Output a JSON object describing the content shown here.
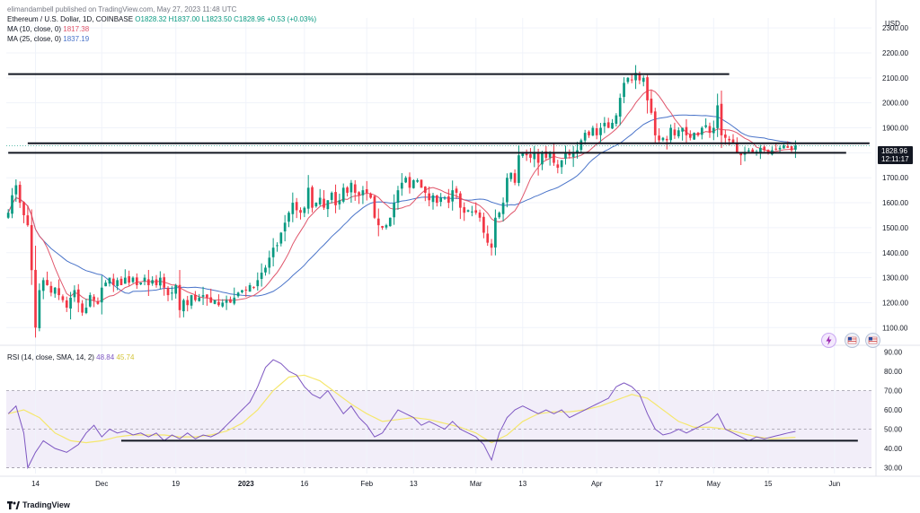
{
  "header": {
    "publisher": "elimandambell published on TradingView.com, May 27, 2023 11:48 UTC",
    "symbol": "Ethereum / U.S. Dollar, 1D, COINBASE",
    "ohlc": "O1828.32 H1837.00 L1823.50 C1828.96 +0.53 (+0.03%)",
    "ma10_label": "MA (10, close, 0)",
    "ma10_value": "1817.38",
    "ma25_label": "MA (25, close, 0)",
    "ma25_value": "1837.19",
    "rsi_label": "RSI (14, close, SMA, 14, 2)",
    "rsi_value": "48.84",
    "rsi_sma_value": "45.74"
  },
  "axis": {
    "currency": "USD",
    "last_price": "1828.96",
    "countdown": "12:11:17"
  },
  "brand": "TradingView",
  "colors": {
    "up": "#089981",
    "down": "#f23645",
    "ma10": "#e0566b",
    "ma25": "#4a74c9",
    "rsi": "#7e57c2",
    "rsi_sma": "#f5e76d",
    "rsi_band": "#ede7f6"
  },
  "chart_data": {
    "type": "candlestick",
    "price_ticks": [
      1100,
      1200,
      1300,
      1400,
      1500,
      1600,
      1700,
      1800,
      1900,
      2000,
      2100,
      2200,
      2300
    ],
    "price_ylim": [
      1040,
      2340
    ],
    "rsi_ticks": [
      30,
      40,
      50,
      60,
      70,
      80,
      90
    ],
    "rsi_ylim": [
      27,
      93
    ],
    "rsi_bands": [
      30,
      50,
      70
    ],
    "x_labels": [
      {
        "label": "14",
        "index": 7
      },
      {
        "label": "Dec",
        "index": 24
      },
      {
        "label": "19",
        "index": 43
      },
      {
        "label": "2023",
        "index": 61
      },
      {
        "label": "16",
        "index": 76
      },
      {
        "label": "Feb",
        "index": 92
      },
      {
        "label": "13",
        "index": 104
      },
      {
        "label": "Mar",
        "index": 120
      },
      {
        "label": "13",
        "index": 132
      },
      {
        "label": "Apr",
        "index": 151
      },
      {
        "label": "17",
        "index": 167
      },
      {
        "label": "May",
        "index": 181
      },
      {
        "label": "15",
        "index": 195
      },
      {
        "label": "Jun",
        "index": 212
      }
    ],
    "levels": [
      {
        "price": 2115,
        "from": 0,
        "to": 185
      },
      {
        "price": 1838,
        "from": 5,
        "to": 221
      },
      {
        "price": 1800,
        "from": 0,
        "to": 215
      }
    ],
    "rsi_level": {
      "value": 44,
      "from": 29,
      "to": 218
    },
    "close_anchors": [
      [
        0,
        1560
      ],
      [
        1,
        1630
      ],
      [
        2,
        1670
      ],
      [
        3,
        1600
      ],
      [
        4,
        1550
      ],
      [
        5,
        1510
      ],
      [
        6,
        1330
      ],
      [
        7,
        1100
      ],
      [
        8,
        1250
      ],
      [
        9,
        1290
      ],
      [
        10,
        1270
      ],
      [
        11,
        1240
      ],
      [
        12,
        1260
      ],
      [
        13,
        1230
      ],
      [
        14,
        1210
      ],
      [
        15,
        1180
      ],
      [
        16,
        1220
      ],
      [
        17,
        1250
      ],
      [
        18,
        1200
      ],
      [
        19,
        1160
      ],
      [
        20,
        1180
      ],
      [
        21,
        1230
      ],
      [
        22,
        1210
      ],
      [
        23,
        1195
      ],
      [
        24,
        1260
      ],
      [
        25,
        1280
      ],
      [
        26,
        1300
      ],
      [
        27,
        1270
      ],
      [
        28,
        1290
      ],
      [
        29,
        1270
      ],
      [
        30,
        1300
      ],
      [
        31,
        1280
      ],
      [
        32,
        1300
      ],
      [
        33,
        1270
      ],
      [
        34,
        1280
      ],
      [
        35,
        1300
      ],
      [
        36,
        1270
      ],
      [
        37,
        1290
      ],
      [
        38,
        1270
      ],
      [
        39,
        1300
      ],
      [
        40,
        1260
      ],
      [
        41,
        1230
      ],
      [
        42,
        1240
      ],
      [
        43,
        1270
      ],
      [
        44,
        1170
      ],
      [
        45,
        1210
      ],
      [
        46,
        1190
      ],
      [
        47,
        1230
      ],
      [
        48,
        1210
      ],
      [
        49,
        1220
      ],
      [
        50,
        1230
      ],
      [
        51,
        1220
      ],
      [
        52,
        1200
      ],
      [
        53,
        1210
      ],
      [
        54,
        1190
      ],
      [
        55,
        1200
      ],
      [
        56,
        1210
      ],
      [
        57,
        1200
      ],
      [
        58,
        1220
      ],
      [
        59,
        1240
      ],
      [
        60,
        1250
      ],
      [
        61,
        1250
      ],
      [
        62,
        1270
      ],
      [
        63,
        1260
      ],
      [
        64,
        1290
      ],
      [
        65,
        1320
      ],
      [
        66,
        1340
      ],
      [
        67,
        1380
      ],
      [
        68,
        1420
      ],
      [
        69,
        1430
      ],
      [
        70,
        1480
      ],
      [
        71,
        1520
      ],
      [
        72,
        1560
      ],
      [
        73,
        1600
      ],
      [
        74,
        1570
      ],
      [
        75,
        1560
      ],
      [
        76,
        1580
      ],
      [
        77,
        1660
      ],
      [
        78,
        1580
      ],
      [
        79,
        1600
      ],
      [
        80,
        1620
      ],
      [
        81,
        1580
      ],
      [
        82,
        1610
      ],
      [
        83,
        1640
      ],
      [
        84,
        1590
      ],
      [
        85,
        1610
      ],
      [
        86,
        1660
      ],
      [
        87,
        1640
      ],
      [
        88,
        1680
      ],
      [
        89,
        1640
      ],
      [
        90,
        1630
      ],
      [
        91,
        1650
      ],
      [
        92,
        1640
      ],
      [
        93,
        1620
      ],
      [
        94,
        1540
      ],
      [
        95,
        1510
      ],
      [
        96,
        1500
      ],
      [
        97,
        1510
      ],
      [
        98,
        1540
      ],
      [
        99,
        1600
      ],
      [
        100,
        1650
      ],
      [
        101,
        1680
      ],
      [
        102,
        1700
      ],
      [
        103,
        1660
      ],
      [
        104,
        1690
      ],
      [
        105,
        1690
      ],
      [
        106,
        1660
      ],
      [
        107,
        1640
      ],
      [
        108,
        1610
      ],
      [
        109,
        1630
      ],
      [
        110,
        1600
      ],
      [
        111,
        1620
      ],
      [
        112,
        1620
      ],
      [
        113,
        1600
      ],
      [
        114,
        1650
      ],
      [
        115,
        1640
      ],
      [
        116,
        1580
      ],
      [
        117,
        1560
      ],
      [
        118,
        1570
      ],
      [
        119,
        1565
      ],
      [
        120,
        1560
      ],
      [
        121,
        1540
      ],
      [
        122,
        1480
      ],
      [
        123,
        1440
      ],
      [
        124,
        1420
      ],
      [
        125,
        1540
      ],
      [
        126,
        1560
      ],
      [
        127,
        1600
      ],
      [
        128,
        1700
      ],
      [
        129,
        1720
      ],
      [
        130,
        1680
      ],
      [
        131,
        1790
      ],
      [
        132,
        1800
      ],
      [
        133,
        1790
      ],
      [
        134,
        1780
      ],
      [
        135,
        1800
      ],
      [
        136,
        1760
      ],
      [
        137,
        1800
      ],
      [
        138,
        1780
      ],
      [
        139,
        1800
      ],
      [
        140,
        1760
      ],
      [
        141,
        1740
      ],
      [
        142,
        1770
      ],
      [
        143,
        1800
      ],
      [
        144,
        1790
      ],
      [
        145,
        1800
      ],
      [
        146,
        1810
      ],
      [
        147,
        1850
      ],
      [
        148,
        1880
      ],
      [
        149,
        1870
      ],
      [
        150,
        1900
      ],
      [
        151,
        1870
      ],
      [
        152,
        1900
      ],
      [
        153,
        1920
      ],
      [
        154,
        1900
      ],
      [
        155,
        1920
      ],
      [
        156,
        1950
      ],
      [
        157,
        2020
      ],
      [
        158,
        2080
      ],
      [
        159,
        2100
      ],
      [
        160,
        2090
      ],
      [
        161,
        2120
      ],
      [
        162,
        2090
      ],
      [
        163,
        2100
      ],
      [
        164,
        2010
      ],
      [
        165,
        1960
      ],
      [
        166,
        1870
      ],
      [
        167,
        1850
      ],
      [
        168,
        1860
      ],
      [
        169,
        1850
      ],
      [
        170,
        1900
      ],
      [
        171,
        1870
      ],
      [
        172,
        1890
      ],
      [
        173,
        1900
      ],
      [
        174,
        1870
      ],
      [
        175,
        1860
      ],
      [
        176,
        1880
      ],
      [
        177,
        1870
      ],
      [
        178,
        1900
      ],
      [
        179,
        1910
      ],
      [
        180,
        1880
      ],
      [
        181,
        1900
      ],
      [
        182,
        1990
      ],
      [
        183,
        1870
      ],
      [
        184,
        1860
      ],
      [
        185,
        1850
      ],
      [
        186,
        1840
      ],
      [
        187,
        1800
      ],
      [
        188,
        1790
      ],
      [
        189,
        1800
      ],
      [
        190,
        1810
      ],
      [
        191,
        1800
      ],
      [
        192,
        1805
      ],
      [
        193,
        1820
      ],
      [
        194,
        1810
      ],
      [
        195,
        1800
      ],
      [
        196,
        1810
      ],
      [
        197,
        1815
      ],
      [
        198,
        1820
      ],
      [
        199,
        1830
      ],
      [
        200,
        1820
      ],
      [
        201,
        1810
      ],
      [
        202,
        1829
      ]
    ],
    "rsi_anchors": [
      [
        0,
        58
      ],
      [
        2,
        62
      ],
      [
        4,
        48
      ],
      [
        5,
        30
      ],
      [
        7,
        38
      ],
      [
        9,
        44
      ],
      [
        12,
        40
      ],
      [
        15,
        38
      ],
      [
        18,
        42
      ],
      [
        20,
        48
      ],
      [
        22,
        52
      ],
      [
        24,
        46
      ],
      [
        26,
        50
      ],
      [
        28,
        48
      ],
      [
        30,
        49
      ],
      [
        32,
        47
      ],
      [
        34,
        48
      ],
      [
        36,
        46
      ],
      [
        38,
        48
      ],
      [
        40,
        44
      ],
      [
        42,
        47
      ],
      [
        44,
        45
      ],
      [
        46,
        48
      ],
      [
        48,
        45
      ],
      [
        50,
        47
      ],
      [
        52,
        46
      ],
      [
        54,
        48
      ],
      [
        56,
        52
      ],
      [
        58,
        56
      ],
      [
        60,
        60
      ],
      [
        62,
        64
      ],
      [
        64,
        72
      ],
      [
        66,
        82
      ],
      [
        68,
        86
      ],
      [
        70,
        84
      ],
      [
        72,
        80
      ],
      [
        74,
        78
      ],
      [
        76,
        72
      ],
      [
        78,
        68
      ],
      [
        80,
        66
      ],
      [
        82,
        70
      ],
      [
        84,
        64
      ],
      [
        86,
        58
      ],
      [
        88,
        62
      ],
      [
        90,
        56
      ],
      [
        92,
        52
      ],
      [
        94,
        46
      ],
      [
        96,
        48
      ],
      [
        98,
        54
      ],
      [
        100,
        60
      ],
      [
        102,
        58
      ],
      [
        104,
        56
      ],
      [
        106,
        52
      ],
      [
        108,
        54
      ],
      [
        110,
        52
      ],
      [
        112,
        50
      ],
      [
        114,
        54
      ],
      [
        116,
        50
      ],
      [
        118,
        48
      ],
      [
        120,
        46
      ],
      [
        122,
        42
      ],
      [
        124,
        34
      ],
      [
        126,
        48
      ],
      [
        128,
        56
      ],
      [
        130,
        60
      ],
      [
        132,
        62
      ],
      [
        134,
        60
      ],
      [
        136,
        58
      ],
      [
        138,
        60
      ],
      [
        140,
        58
      ],
      [
        142,
        60
      ],
      [
        144,
        56
      ],
      [
        146,
        58
      ],
      [
        148,
        60
      ],
      [
        150,
        62
      ],
      [
        152,
        64
      ],
      [
        154,
        66
      ],
      [
        156,
        72
      ],
      [
        158,
        74
      ],
      [
        160,
        72
      ],
      [
        162,
        68
      ],
      [
        164,
        58
      ],
      [
        166,
        50
      ],
      [
        168,
        47
      ],
      [
        170,
        48
      ],
      [
        172,
        50
      ],
      [
        174,
        48
      ],
      [
        176,
        50
      ],
      [
        178,
        52
      ],
      [
        180,
        54
      ],
      [
        182,
        58
      ],
      [
        184,
        50
      ],
      [
        186,
        48
      ],
      [
        188,
        46
      ],
      [
        190,
        44
      ],
      [
        192,
        46
      ],
      [
        194,
        45
      ],
      [
        196,
        46
      ],
      [
        198,
        47
      ],
      [
        200,
        48
      ],
      [
        202,
        48.84
      ]
    ],
    "rsi_sma_anchors": [
      [
        0,
        58
      ],
      [
        4,
        60
      ],
      [
        8,
        56
      ],
      [
        12,
        48
      ],
      [
        16,
        44
      ],
      [
        20,
        43
      ],
      [
        24,
        44
      ],
      [
        28,
        46
      ],
      [
        32,
        47
      ],
      [
        36,
        47
      ],
      [
        40,
        47
      ],
      [
        44,
        46
      ],
      [
        48,
        46
      ],
      [
        52,
        47
      ],
      [
        56,
        49
      ],
      [
        60,
        53
      ],
      [
        64,
        60
      ],
      [
        68,
        70
      ],
      [
        72,
        77
      ],
      [
        76,
        78
      ],
      [
        80,
        75
      ],
      [
        84,
        69
      ],
      [
        88,
        63
      ],
      [
        92,
        58
      ],
      [
        96,
        54
      ],
      [
        100,
        55
      ],
      [
        104,
        56
      ],
      [
        108,
        55
      ],
      [
        112,
        53
      ],
      [
        116,
        51
      ],
      [
        120,
        48
      ],
      [
        124,
        43
      ],
      [
        128,
        47
      ],
      [
        132,
        54
      ],
      [
        136,
        58
      ],
      [
        140,
        59
      ],
      [
        144,
        59
      ],
      [
        148,
        60
      ],
      [
        152,
        62
      ],
      [
        156,
        65
      ],
      [
        160,
        68
      ],
      [
        164,
        66
      ],
      [
        168,
        60
      ],
      [
        172,
        54
      ],
      [
        176,
        51
      ],
      [
        180,
        51
      ],
      [
        184,
        50
      ],
      [
        188,
        48
      ],
      [
        192,
        46
      ],
      [
        196,
        45
      ],
      [
        200,
        45.5
      ],
      [
        202,
        45.74
      ]
    ]
  }
}
